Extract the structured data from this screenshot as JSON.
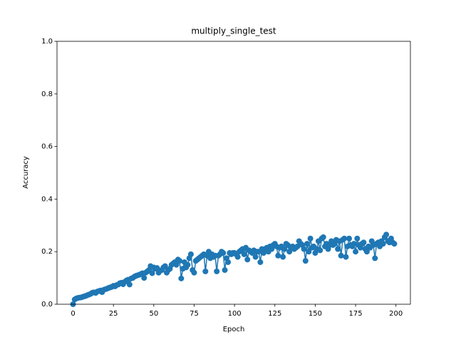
{
  "chart_data": {
    "type": "line",
    "title": "multiply_single_test",
    "x_label": "Epoch",
    "y_label": "Accuracy",
    "x": [
      0,
      1,
      2,
      3,
      4,
      5,
      6,
      7,
      8,
      9,
      10,
      11,
      12,
      13,
      14,
      15,
      16,
      17,
      18,
      19,
      20,
      21,
      22,
      23,
      24,
      25,
      26,
      27,
      28,
      29,
      30,
      31,
      32,
      33,
      34,
      35,
      36,
      37,
      38,
      39,
      40,
      41,
      42,
      43,
      44,
      45,
      46,
      47,
      48,
      49,
      50,
      51,
      52,
      53,
      54,
      55,
      56,
      57,
      58,
      59,
      60,
      61,
      62,
      63,
      64,
      65,
      66,
      67,
      68,
      69,
      70,
      71,
      72,
      73,
      74,
      75,
      76,
      77,
      78,
      79,
      80,
      81,
      82,
      83,
      84,
      85,
      86,
      87,
      88,
      89,
      90,
      91,
      92,
      93,
      94,
      95,
      96,
      97,
      98,
      99,
      100,
      101,
      102,
      103,
      104,
      105,
      106,
      107,
      108,
      109,
      110,
      111,
      112,
      113,
      114,
      115,
      116,
      117,
      118,
      119,
      120,
      121,
      122,
      123,
      124,
      125,
      126,
      127,
      128,
      129,
      130,
      131,
      132,
      133,
      134,
      135,
      136,
      137,
      138,
      139,
      140,
      141,
      142,
      143,
      144,
      145,
      146,
      147,
      148,
      149,
      150,
      151,
      152,
      153,
      154,
      155,
      156,
      157,
      158,
      159,
      160,
      161,
      162,
      163,
      164,
      165,
      166,
      167,
      168,
      169,
      170,
      171,
      172,
      173,
      174,
      175,
      176,
      177,
      178,
      179,
      180,
      181,
      182,
      183,
      184,
      185,
      186,
      187,
      188,
      189,
      190,
      191,
      192,
      193,
      194,
      195,
      196,
      197,
      198,
      199
    ],
    "series": [
      {
        "color": "#1f77b4",
        "values": [
          0.0,
          0.018,
          0.022,
          0.024,
          0.025,
          0.026,
          0.028,
          0.03,
          0.032,
          0.035,
          0.037,
          0.04,
          0.044,
          0.045,
          0.043,
          0.048,
          0.05,
          0.052,
          0.046,
          0.055,
          0.057,
          0.059,
          0.062,
          0.064,
          0.066,
          0.07,
          0.068,
          0.073,
          0.075,
          0.08,
          0.082,
          0.076,
          0.085,
          0.09,
          0.093,
          0.075,
          0.098,
          0.1,
          0.105,
          0.108,
          0.11,
          0.112,
          0.115,
          0.118,
          0.1,
          0.12,
          0.125,
          0.13,
          0.145,
          0.118,
          0.14,
          0.135,
          0.138,
          0.12,
          0.128,
          0.13,
          0.14,
          0.145,
          0.12,
          0.13,
          0.135,
          0.15,
          0.155,
          0.16,
          0.15,
          0.17,
          0.165,
          0.098,
          0.135,
          0.16,
          0.14,
          0.15,
          0.175,
          0.19,
          0.13,
          0.12,
          0.165,
          0.17,
          0.175,
          0.18,
          0.185,
          0.19,
          0.125,
          0.185,
          0.2,
          0.175,
          0.19,
          0.18,
          0.185,
          0.125,
          0.185,
          0.19,
          0.2,
          0.195,
          0.13,
          0.175,
          0.16,
          0.195,
          0.19,
          0.195,
          0.195,
          0.19,
          0.18,
          0.2,
          0.205,
          0.21,
          0.19,
          0.215,
          0.17,
          0.205,
          0.2,
          0.195,
          0.205,
          0.18,
          0.2,
          0.2,
          0.16,
          0.21,
          0.195,
          0.21,
          0.215,
          0.2,
          0.22,
          0.21,
          0.225,
          0.23,
          0.22,
          0.185,
          0.215,
          0.22,
          0.18,
          0.21,
          0.23,
          0.225,
          0.2,
          0.215,
          0.22,
          0.21,
          0.215,
          0.22,
          0.24,
          0.23,
          0.225,
          0.21,
          0.165,
          0.23,
          0.2,
          0.25,
          0.215,
          0.22,
          0.195,
          0.21,
          0.24,
          0.205,
          0.25,
          0.255,
          0.22,
          0.23,
          0.21,
          0.225,
          0.24,
          0.225,
          0.23,
          0.245,
          0.21,
          0.24,
          0.185,
          0.245,
          0.25,
          0.18,
          0.22,
          0.25,
          0.225,
          0.22,
          0.23,
          0.2,
          0.25,
          0.225,
          0.215,
          0.23,
          0.235,
          0.21,
          0.2,
          0.22,
          0.215,
          0.24,
          0.225,
          0.175,
          0.23,
          0.235,
          0.22,
          0.24,
          0.23,
          0.255,
          0.265,
          0.24,
          0.235,
          0.25,
          0.235,
          0.23
        ]
      }
    ],
    "xlim": [
      -9.95,
      208.95
    ],
    "ylim": [
      0,
      1
    ],
    "xticks": [
      0,
      25,
      50,
      75,
      100,
      125,
      150,
      175,
      200
    ],
    "yticks": [
      {
        "value": 0,
        "label": "0.0"
      },
      {
        "value": 0.2,
        "label": "0.2"
      },
      {
        "value": 0.4,
        "label": "0.4"
      },
      {
        "value": 0.6,
        "label": "0.6"
      },
      {
        "value": 0.8,
        "label": "0.8"
      },
      {
        "value": 1,
        "label": "1.0"
      }
    ],
    "grid": false
  }
}
